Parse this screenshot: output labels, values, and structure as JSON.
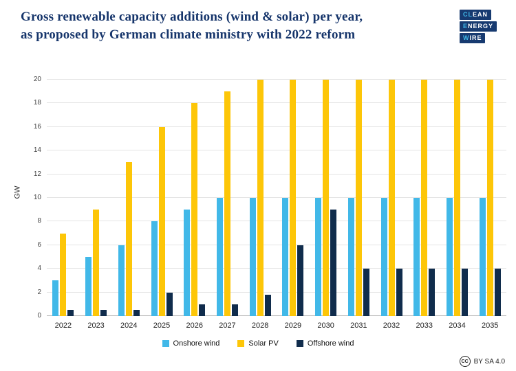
{
  "header": {
    "title_line1": "Gross renewable capacity additions (wind & solar) per year,",
    "title_line2": "as proposed by German climate ministry with 2022 reform",
    "logo_lines": [
      {
        "highlight": "CL",
        "rest": "EAN"
      },
      {
        "highlight": "E",
        "rest": "NERGY"
      },
      {
        "highlight": "W",
        "rest": "IRE"
      }
    ]
  },
  "chart_data": {
    "type": "bar",
    "categories": [
      "2022",
      "2023",
      "2024",
      "2025",
      "2026",
      "2027",
      "2028",
      "2029",
      "2030",
      "2031",
      "2032",
      "2033",
      "2034",
      "2035"
    ],
    "series": [
      {
        "name": "Onshore wind",
        "color": "#41b8e8",
        "values": [
          3,
          5,
          6,
          8,
          9,
          10,
          10,
          10,
          10,
          10,
          10,
          10,
          10,
          10
        ]
      },
      {
        "name": "Solar PV",
        "color": "#fdc608",
        "values": [
          7,
          9,
          13,
          16,
          18,
          19,
          20,
          20,
          20,
          20,
          20,
          20,
          20,
          20
        ]
      },
      {
        "name": "Offshore wind",
        "color": "#102c4c",
        "values": [
          0.5,
          0.5,
          0.5,
          2,
          1,
          1,
          1.8,
          6,
          9,
          4,
          4,
          4,
          4,
          4
        ]
      }
    ],
    "title": "Gross renewable capacity additions (wind & solar) per year, as proposed by German climate ministry with 2022 reform",
    "xlabel": "",
    "ylabel": "GW",
    "ylim": [
      0,
      20
    ],
    "ytick_step": 2,
    "grid": true,
    "legend_position": "bottom"
  },
  "footer": {
    "cc_icon": "CC",
    "license": "BY SA 4.0"
  }
}
